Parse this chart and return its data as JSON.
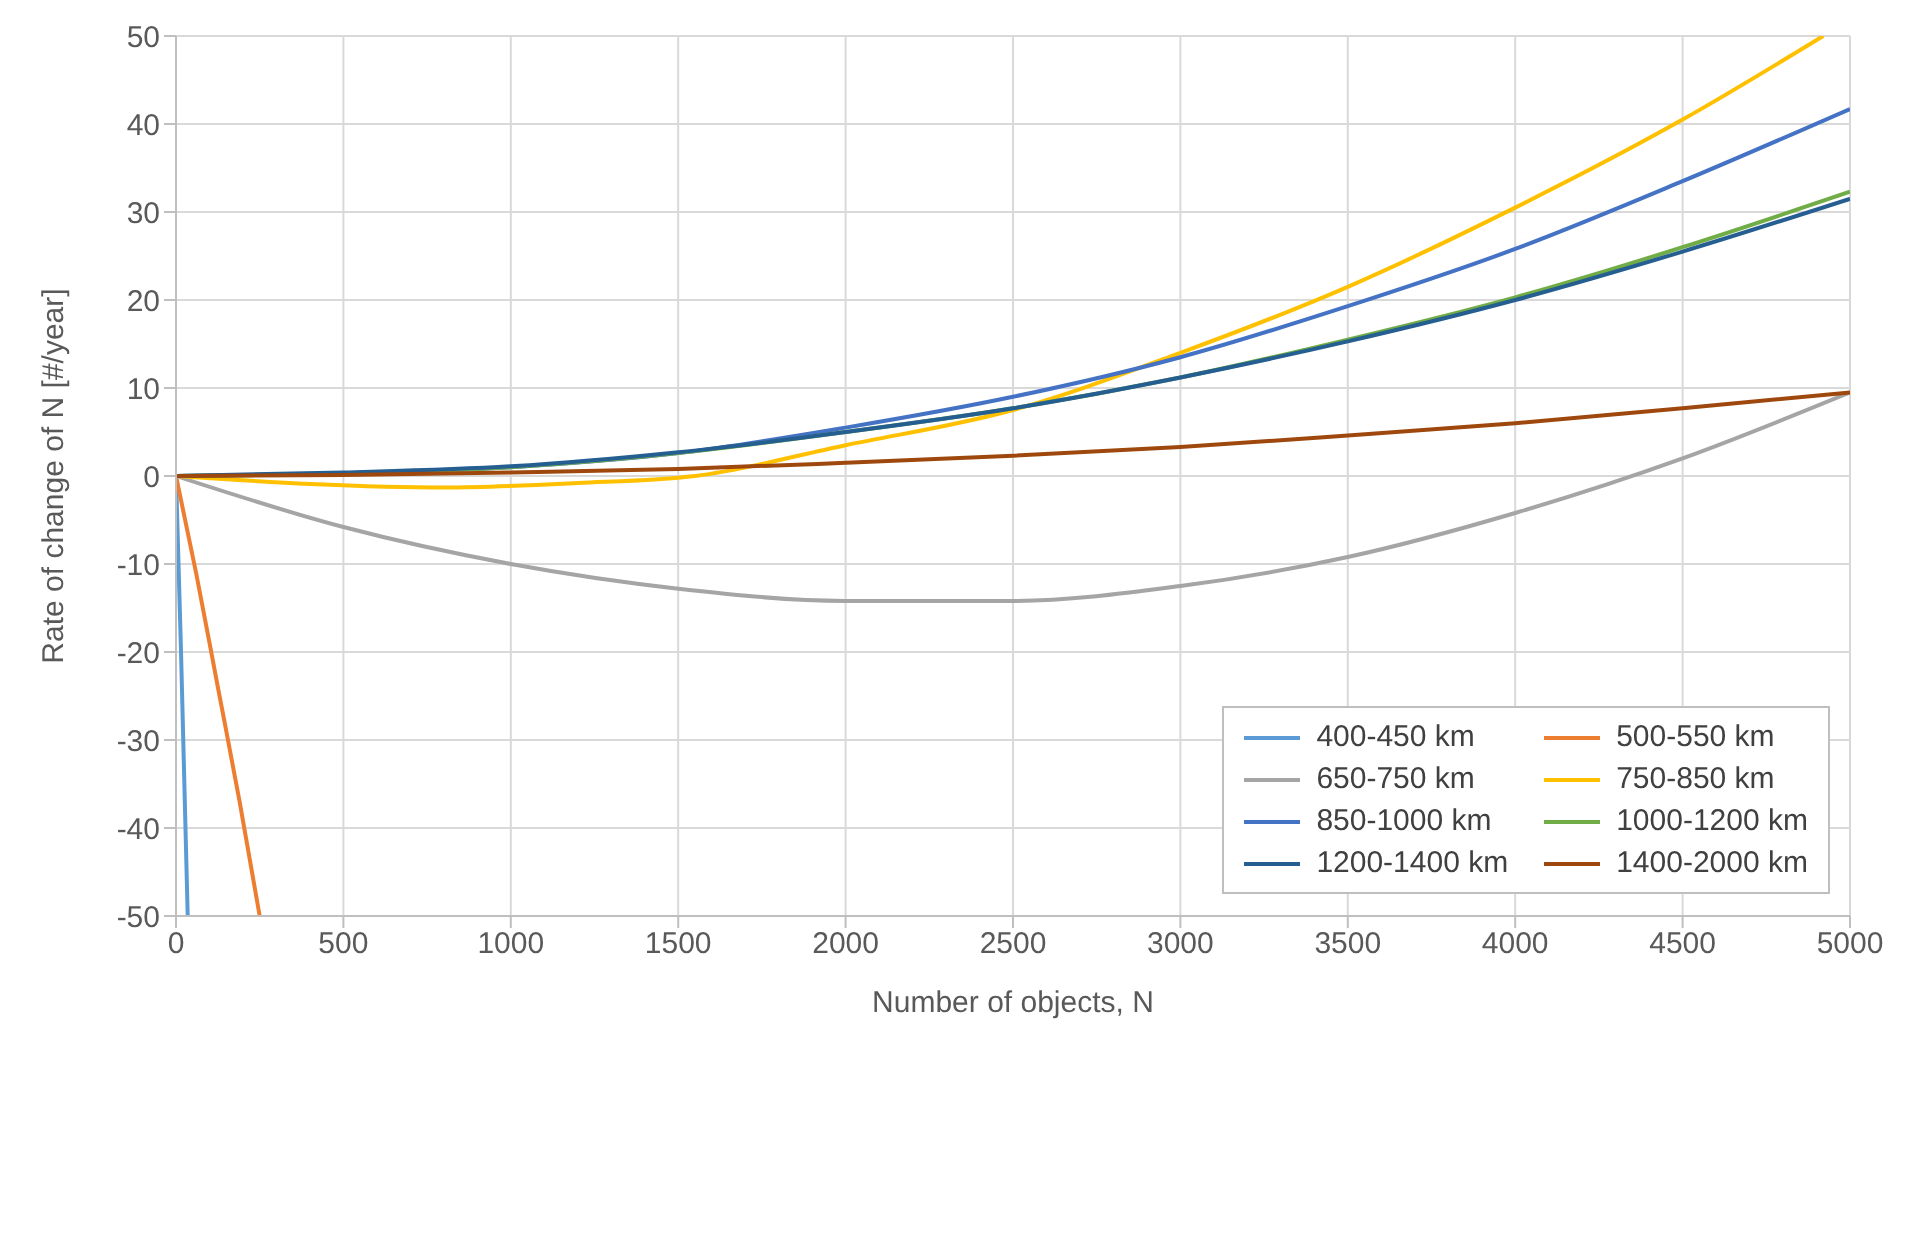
{
  "chart_data": {
    "type": "line",
    "xlabel": "Number of objects, N",
    "ylabel": "Rate of change of N [#/year]",
    "xlim": [
      0,
      5000
    ],
    "ylim": [
      -50,
      50
    ],
    "xticks": [
      0,
      500,
      1000,
      1500,
      2000,
      2500,
      3000,
      3500,
      4000,
      4500,
      5000
    ],
    "yticks": [
      -50,
      -40,
      -30,
      -20,
      -10,
      0,
      10,
      20,
      30,
      40,
      50
    ],
    "grid": true,
    "legend": "bottom right",
    "series": [
      {
        "name": "400-450 km",
        "color": "#5b9bd5",
        "x": [
          0,
          15,
          35
        ],
        "values": [
          0,
          -20,
          -50
        ]
      },
      {
        "name": "500-550 km",
        "color": "#ed7d31",
        "x": [
          0,
          60,
          125,
          190,
          250
        ],
        "values": [
          0,
          -11,
          -24,
          -37,
          -50
        ]
      },
      {
        "name": "650-750 km",
        "color": "#a5a5a5",
        "x": [
          0,
          500,
          1000,
          1500,
          2000,
          2500,
          3000,
          3500,
          4000,
          4500,
          5000
        ],
        "values": [
          0,
          -5.8,
          -10,
          -12.8,
          -14.2,
          -14.2,
          -12.5,
          -9.2,
          -4.2,
          2,
          9.5
        ]
      },
      {
        "name": "750-850 km",
        "color": "#ffc000",
        "x": [
          0,
          400,
          800,
          1200,
          1550,
          2000,
          2500,
          3000,
          3500,
          4000,
          4500,
          4920
        ],
        "values": [
          0,
          -0.9,
          -1.3,
          -0.8,
          0,
          3.5,
          7.5,
          14,
          21.5,
          30.5,
          40.5,
          50
        ]
      },
      {
        "name": "850-1000 km",
        "color": "#4472c4",
        "x": [
          0,
          500,
          1000,
          1500,
          2000,
          2500,
          3000,
          3500,
          4000,
          4500,
          5000
        ],
        "values": [
          0,
          0.3,
          1,
          2.6,
          5.5,
          9,
          13.5,
          19.3,
          25.8,
          33.5,
          41.7
        ]
      },
      {
        "name": "1000-1200 km",
        "color": "#70ad47",
        "x": [
          0,
          500,
          1000,
          1500,
          2000,
          2500,
          3000,
          3500,
          4000,
          4500,
          5000
        ],
        "values": [
          0,
          0.3,
          1,
          2.6,
          5,
          7.7,
          11.2,
          15.5,
          20.3,
          26,
          32.3
        ]
      },
      {
        "name": "1200-1400 km",
        "color": "#255e91",
        "x": [
          0,
          500,
          1000,
          1500,
          2000,
          2500,
          3000,
          3500,
          4000,
          4500,
          5000
        ],
        "values": [
          0,
          0.4,
          1.1,
          2.7,
          5,
          7.7,
          11.2,
          15.3,
          20,
          25.5,
          31.5
        ]
      },
      {
        "name": "1400-2000 km",
        "color": "#9e480e",
        "x": [
          0,
          500,
          1000,
          1500,
          2000,
          2500,
          3000,
          3500,
          4000,
          4500,
          5000
        ],
        "values": [
          0,
          0.1,
          0.4,
          0.8,
          1.5,
          2.3,
          3.3,
          4.6,
          6,
          7.7,
          9.5
        ]
      }
    ]
  }
}
